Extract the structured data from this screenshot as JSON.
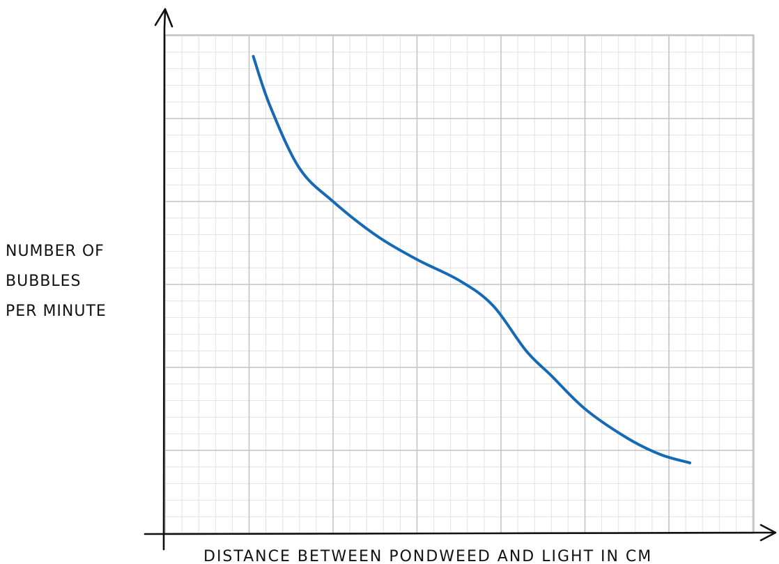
{
  "chart_data": {
    "type": "line",
    "title": "",
    "xlabel": "DISTANCE BETWEEN PONDWEED AND LIGHT IN CM",
    "ylabel_lines": [
      "NUMBER  OF",
      "BUBBLES",
      "PER  MINUTE"
    ],
    "x_ticks_labeled": false,
    "y_ticks_labeled": false,
    "grid": true,
    "grid_major_cols": 7,
    "grid_major_rows": 6,
    "grid_minor_per_major": 5,
    "xlim": [
      0,
      7
    ],
    "ylim": [
      0,
      6
    ],
    "series": [
      {
        "color": "#1569b5",
        "points": [
          [
            1.05,
            5.75
          ],
          [
            1.25,
            5.15
          ],
          [
            1.6,
            4.4
          ],
          [
            2.0,
            4.0
          ],
          [
            2.5,
            3.6
          ],
          [
            3.0,
            3.3
          ],
          [
            3.5,
            3.05
          ],
          [
            3.9,
            2.75
          ],
          [
            4.3,
            2.2
          ],
          [
            4.6,
            1.9
          ],
          [
            5.0,
            1.5
          ],
          [
            5.5,
            1.15
          ],
          [
            5.9,
            0.95
          ],
          [
            6.25,
            0.85
          ]
        ]
      }
    ],
    "axis_color": "#111111",
    "grid_major_color": "#c4c4c4",
    "grid_minor_color": "#e2e2e2"
  }
}
